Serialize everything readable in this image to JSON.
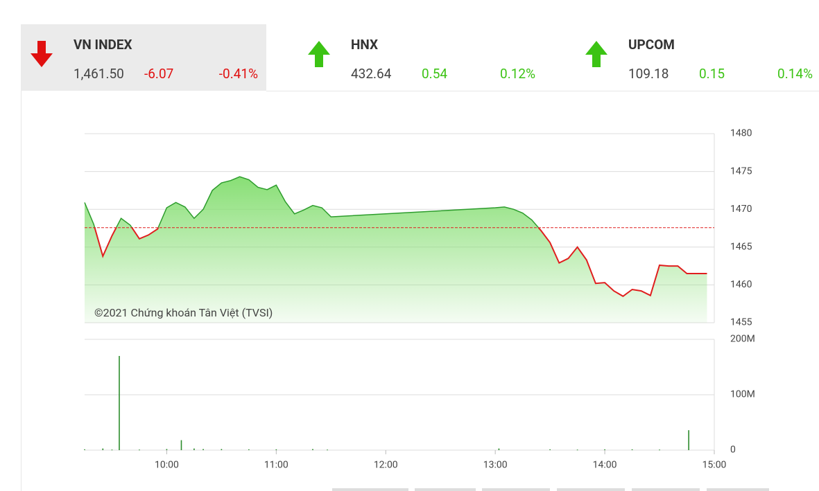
{
  "indices": [
    {
      "name": "VN INDEX",
      "value": "1,461.50",
      "change": "-6.07",
      "percent": "-0.41%",
      "direction": "down"
    },
    {
      "name": "HNX",
      "value": "432.64",
      "change": "0.54",
      "percent": "0.12%",
      "direction": "up"
    },
    {
      "name": "UPCOM",
      "value": "109.18",
      "change": "0.15",
      "percent": "0.14%",
      "direction": "up"
    }
  ],
  "chart_data": [
    {
      "type": "line",
      "annotation": "©2021 Chứng khoán Tân Việt (TVSI)",
      "x": [
        "09:15",
        "09:20",
        "09:25",
        "09:30",
        "09:35",
        "09:40",
        "09:45",
        "09:50",
        "09:55",
        "10:00",
        "10:05",
        "10:10",
        "10:15",
        "10:20",
        "10:25",
        "10:30",
        "10:35",
        "10:40",
        "10:45",
        "10:50",
        "10:55",
        "11:00",
        "11:05",
        "11:10",
        "11:15",
        "11:20",
        "11:25",
        "11:30",
        "13:00",
        "13:05",
        "13:10",
        "13:15",
        "13:20",
        "13:25",
        "13:30",
        "13:35",
        "13:40",
        "13:45",
        "13:50",
        "13:55",
        "14:00",
        "14:05",
        "14:10",
        "14:15",
        "14:20",
        "14:25",
        "14:30",
        "14:35",
        "14:40",
        "14:45",
        "14:56"
      ],
      "values": [
        1470.9,
        1468,
        1463.8,
        1466.5,
        1468.8,
        1467.9,
        1466.1,
        1466.6,
        1467.4,
        1470.2,
        1470.9,
        1470.3,
        1468.8,
        1470,
        1472.5,
        1473.5,
        1473.8,
        1474.3,
        1473.9,
        1472.9,
        1472.6,
        1473.2,
        1471,
        1469.4,
        1469.9,
        1470.5,
        1470.2,
        1469,
        1470.2,
        1470.3,
        1470,
        1469.5,
        1468.6,
        1467.2,
        1465.6,
        1462.9,
        1463.5,
        1465,
        1463.3,
        1460.2,
        1460.3,
        1459.2,
        1458.5,
        1459.4,
        1459.2,
        1458.6,
        1462.6,
        1462.5,
        1462.5,
        1461.5,
        1461.5
      ],
      "reference": 1467.57,
      "color": "#2c9c2c",
      "down_color": "#e01e1e",
      "fill_color": "#82dd6e",
      "reference_color": "#e01e1e",
      "xlim": [
        "09:15",
        "15:00"
      ],
      "ylim": [
        1455,
        1480
      ],
      "yticks": [
        1455,
        1460,
        1465,
        1470,
        1475,
        1480
      ],
      "grid": true
    },
    {
      "type": "bar",
      "color": "#2c8c2c",
      "x": [
        "09:15",
        "09:25",
        "09:30",
        "09:34",
        "09:45",
        "10:00",
        "10:08",
        "10:15",
        "10:20",
        "10:30",
        "10:45",
        "11:00",
        "11:20",
        "11:28",
        "13:02",
        "13:30",
        "13:45",
        "14:00",
        "14:15",
        "14:30",
        "14:46"
      ],
      "values": [
        1500000,
        3000000,
        1000000,
        170000000,
        1000000,
        2000000,
        18000000,
        3000000,
        2000000,
        2000000,
        1500000,
        1500000,
        2000000,
        1000000,
        3000000,
        1500000,
        1000000,
        1500000,
        1500000,
        1000000,
        36000000
      ],
      "xlim": [
        "09:15",
        "15:00"
      ],
      "xticks": [
        "10:00",
        "11:00",
        "12:00",
        "13:00",
        "14:00",
        "15:00"
      ],
      "ylim": [
        0,
        200000000
      ],
      "yticks": [
        0,
        {
          "value": 100000000,
          "label": "100M"
        },
        {
          "value": 200000000,
          "label": "200M"
        }
      ],
      "grid": true
    }
  ]
}
